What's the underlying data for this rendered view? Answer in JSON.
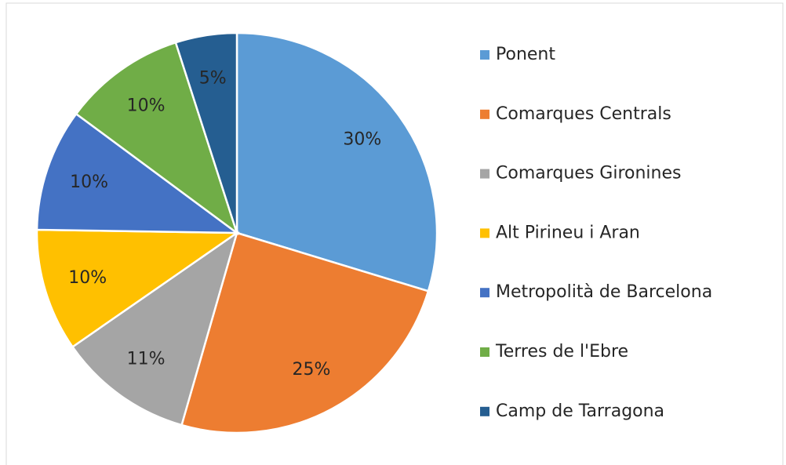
{
  "chart_data": {
    "type": "pie",
    "categories": [
      "Ponent",
      "Comarques Centrals",
      "Comarques Gironines",
      "Alt Pirineu i Aran",
      "Metropolità de Barcelona",
      "Terres de l'Ebre",
      "Camp de Tarragona"
    ],
    "values": [
      30,
      25,
      11,
      10,
      10,
      10,
      5
    ],
    "value_labels": [
      "30%",
      "25%",
      "11%",
      "10%",
      "10%",
      "10%",
      "5%"
    ],
    "colors": [
      "#5b9bd5",
      "#ed7d31",
      "#a5a5a5",
      "#ffc000",
      "#4472c4",
      "#70ad47",
      "#255e91"
    ],
    "legend": "right"
  }
}
